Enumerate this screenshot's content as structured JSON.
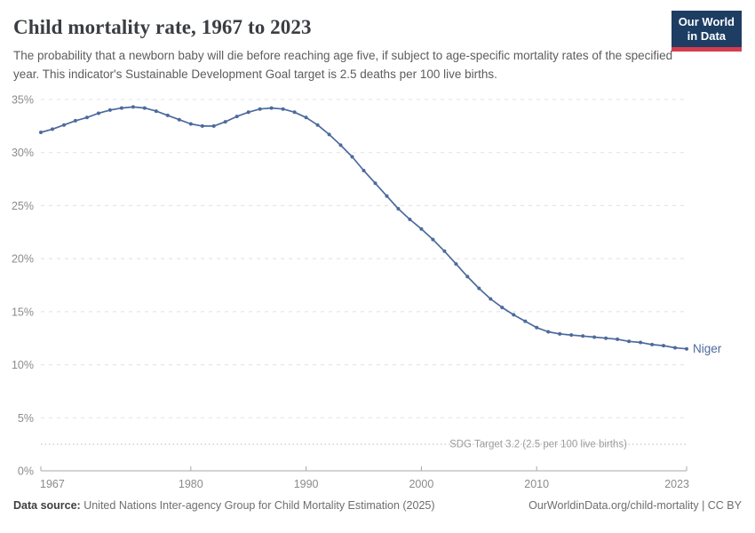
{
  "header": {
    "title": "Child mortality rate, 1967 to 2023",
    "subtitle": "The probability that a newborn baby will die before reaching age five, if subject to age-specific mortality rates of the specified year. This indicator's Sustainable Development Goal target is 2.5 deaths per 100 live births.",
    "logo_line1": "Our World",
    "logo_line2": "in Data",
    "logo_bg_color": "#1d3d63",
    "logo_stripe_color": "#d63c4e"
  },
  "chart_data": {
    "type": "line",
    "title": "Child mortality rate, 1967 to 2023",
    "xlabel": "",
    "ylabel": "",
    "xlim": [
      1967,
      2023
    ],
    "ylim": [
      0,
      35
    ],
    "x_ticks": [
      1967,
      1980,
      1990,
      2000,
      2010,
      2023
    ],
    "y_ticks": [
      0,
      5,
      10,
      15,
      20,
      25,
      30,
      35
    ],
    "y_tick_suffix": "%",
    "grid": "horizontal-dashed",
    "legend_position": "end-of-line-label",
    "target_line": {
      "value": 2.5,
      "label": "SDG Target 3.2 (2.5 per 100 live births)"
    },
    "series": [
      {
        "name": "Niger",
        "color": "#4c6a9c",
        "x": [
          1967,
          1968,
          1969,
          1970,
          1971,
          1972,
          1973,
          1974,
          1975,
          1976,
          1977,
          1978,
          1979,
          1980,
          1981,
          1982,
          1983,
          1984,
          1985,
          1986,
          1987,
          1988,
          1989,
          1990,
          1991,
          1992,
          1993,
          1994,
          1995,
          1996,
          1997,
          1998,
          1999,
          2000,
          2001,
          2002,
          2003,
          2004,
          2005,
          2006,
          2007,
          2008,
          2009,
          2010,
          2011,
          2012,
          2013,
          2014,
          2015,
          2016,
          2017,
          2018,
          2019,
          2020,
          2021,
          2022,
          2023
        ],
        "values": [
          31.9,
          32.2,
          32.6,
          33.0,
          33.3,
          33.7,
          34.0,
          34.2,
          34.3,
          34.2,
          33.9,
          33.5,
          33.1,
          32.7,
          32.5,
          32.5,
          32.9,
          33.4,
          33.8,
          34.1,
          34.2,
          34.1,
          33.8,
          33.3,
          32.6,
          31.7,
          30.7,
          29.6,
          28.3,
          27.1,
          25.9,
          24.7,
          23.7,
          22.8,
          21.8,
          20.7,
          19.5,
          18.3,
          17.2,
          16.2,
          15.4,
          14.7,
          14.1,
          13.5,
          13.1,
          12.9,
          12.8,
          12.7,
          12.6,
          12.5,
          12.4,
          12.2,
          12.1,
          11.9,
          11.8,
          11.6,
          11.5
        ]
      }
    ],
    "colors": {
      "grid": "#e0e0e0",
      "axis": "#a8a8a8",
      "tick_text": "#8b8b8b",
      "target": "#c9c9c9",
      "target_text": "#9c9c9c"
    }
  },
  "footer": {
    "source_label": "Data source:",
    "source_text": " United Nations Inter-agency Group for Child Mortality Estimation (2025)",
    "right_text": "OurWorldinData.org/child-mortality | CC BY"
  }
}
